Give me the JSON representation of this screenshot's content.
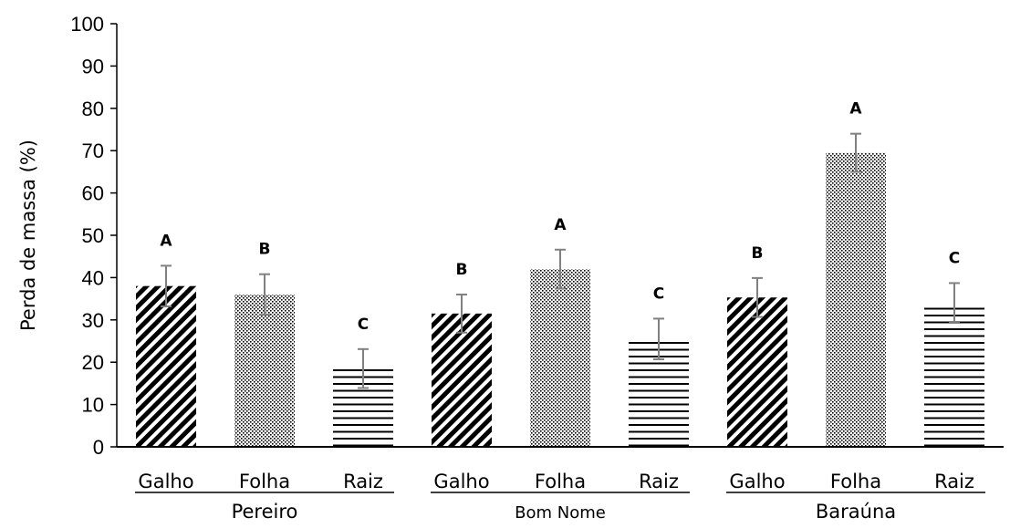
{
  "chart_data": {
    "type": "bar",
    "ylabel": "Perda de massa (%)",
    "xlabel": "",
    "ylim": [
      0,
      100
    ],
    "yticks": [
      0,
      10,
      20,
      30,
      40,
      50,
      60,
      70,
      80,
      90,
      100
    ],
    "grid": false,
    "groups": [
      "Pereiro",
      "Bom Nome",
      "Baraúna"
    ],
    "bars": [
      {
        "group": "Pereiro",
        "category": "Galho",
        "value": 38,
        "error": 4.8,
        "letter": "A",
        "pattern": "diagonal"
      },
      {
        "group": "Pereiro",
        "category": "Folha",
        "value": 36,
        "error": 4.8,
        "letter": "B",
        "pattern": "dots"
      },
      {
        "group": "Pereiro",
        "category": "Raiz",
        "value": 18.5,
        "error": 4.6,
        "letter": "C",
        "pattern": "horizontal"
      },
      {
        "group": "Bom Nome",
        "category": "Galho",
        "value": 31.5,
        "error": 4.5,
        "letter": "B",
        "pattern": "diagonal"
      },
      {
        "group": "Bom Nome",
        "category": "Folha",
        "value": 42,
        "error": 4.6,
        "letter": "A",
        "pattern": "dots"
      },
      {
        "group": "Bom Nome",
        "category": "Raiz",
        "value": 25.5,
        "error": 4.8,
        "letter": "C",
        "pattern": "horizontal"
      },
      {
        "group": "Baraúna",
        "category": "Galho",
        "value": 35.3,
        "error": 4.6,
        "letter": "B",
        "pattern": "diagonal"
      },
      {
        "group": "Baraúna",
        "category": "Folha",
        "value": 69.5,
        "error": 4.5,
        "letter": "A",
        "pattern": "dots"
      },
      {
        "group": "Baraúna",
        "category": "Raiz",
        "value": 34,
        "error": 4.7,
        "letter": "C",
        "pattern": "horizontal"
      }
    ],
    "colors": {
      "bar": "#000000",
      "error_bar": "#808080",
      "axis": "#000000",
      "background": "#ffffff"
    }
  }
}
